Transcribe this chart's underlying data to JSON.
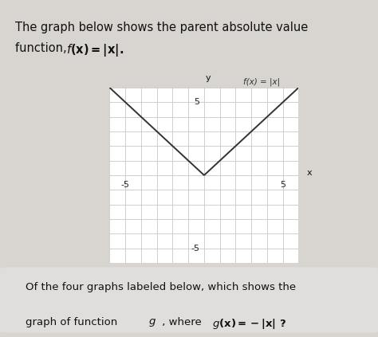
{
  "title_line1": "The graph below shows the parent absolute value",
  "title_line2": "function, ",
  "title_math_bold": "f(x)=|x|.",
  "graph_label": "f(x) = |x|",
  "x_label": "x",
  "y_label": "y",
  "x_tick_neg": "-5",
  "x_tick_pos": "5",
  "y_tick_pos": "5",
  "y_tick_neg": "-5",
  "xlim": [
    -6,
    6
  ],
  "ylim": [
    -6,
    6
  ],
  "grid_color": "#c8c8c8",
  "axis_color": "#222222",
  "curve_color": "#333333",
  "figure_background": "#d8d5d0",
  "bottom_box_color": "#e0dedd",
  "bottom_line1": "Of the four graphs labeled below, which shows the",
  "bottom_line2_pre": "graph of function ",
  "bottom_line2_g": "g",
  "bottom_line2_mid": " , where ",
  "bottom_line2_math": "g(x)=−|x|",
  "bottom_line2_q": " ?"
}
